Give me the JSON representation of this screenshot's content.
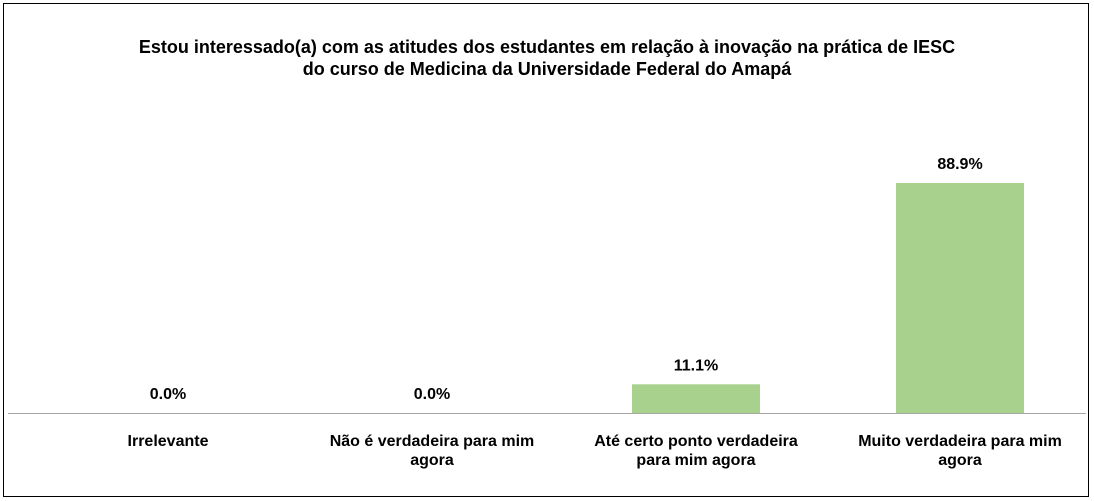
{
  "chart_data": {
    "type": "bar",
    "title": "Estou interessado(a) com as atitudes dos estudantes em relação à inovação na prática de IESC do curso de Medicina da Universidade Federal do Amapá",
    "categories": [
      "Irrelevante",
      "Não é verdadeira para mim agora",
      "Até certo ponto verdadeira para mim agora",
      "Muito verdadeira para mim agora"
    ],
    "values": [
      0,
      0,
      11.1,
      88.9
    ],
    "value_labels": [
      "0.0%",
      "0.0%",
      "11.1%",
      "88.9%"
    ],
    "color": "#a9d18e"
  }
}
